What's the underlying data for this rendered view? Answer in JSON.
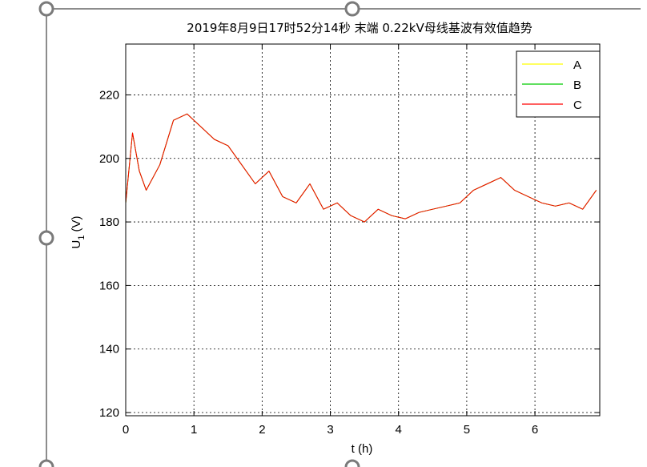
{
  "chart_data": {
    "type": "line",
    "title": "2019年8月9日17时52分14秒  末端 0.22kV母线基波有效值趋势",
    "xlabel": "t (h)",
    "ylabel": "U",
    "ylabel_sub": "1",
    "ylabel_unit": "(V)",
    "xlim": [
      0,
      6.95
    ],
    "ylim": [
      119,
      236
    ],
    "xticks": [
      0,
      1,
      2,
      3,
      4,
      5,
      6
    ],
    "yticks": [
      120,
      140,
      160,
      180,
      200,
      220
    ],
    "grid": true,
    "legend_position": "top-right",
    "series": [
      {
        "name": "A",
        "color": "#ffff00",
        "x": [
          0,
          0.1,
          0.2,
          0.3,
          0.5,
          0.7,
          0.9,
          1.1,
          1.3,
          1.5,
          1.7,
          1.9,
          2.1,
          2.3,
          2.5,
          2.7,
          2.9,
          3.1,
          3.3,
          3.5,
          3.7,
          3.9,
          4.1,
          4.3,
          4.5,
          4.7,
          4.9,
          5.1,
          5.3,
          5.5,
          5.7,
          5.9,
          6.1,
          6.3,
          6.5,
          6.7,
          6.9
        ],
        "values": [
          186,
          208,
          196,
          190,
          198,
          212,
          214,
          210,
          206,
          204,
          198,
          192,
          196,
          188,
          186,
          192,
          184,
          186,
          182,
          180,
          184,
          182,
          181,
          183,
          184,
          185,
          186,
          190,
          192,
          194,
          190,
          188,
          186,
          185,
          186,
          184,
          190
        ]
      },
      {
        "name": "B",
        "color": "#00cc00",
        "x": [
          0,
          0.1,
          0.2,
          0.3,
          0.5,
          0.7,
          0.9,
          1.1,
          1.3,
          1.5,
          1.7,
          1.9,
          2.1,
          2.3,
          2.5,
          2.7,
          2.9,
          3.1,
          3.3,
          3.5,
          3.7,
          3.9,
          4.1,
          4.3,
          4.5,
          4.7,
          4.9,
          5.1,
          5.3,
          5.5,
          5.7,
          5.9,
          6.1,
          6.3,
          6.5,
          6.7,
          6.9
        ],
        "values": [
          186,
          208,
          196,
          190,
          198,
          212,
          214,
          210,
          206,
          204,
          198,
          192,
          196,
          188,
          186,
          192,
          184,
          186,
          182,
          180,
          184,
          182,
          181,
          183,
          184,
          185,
          186,
          190,
          192,
          194,
          190,
          188,
          186,
          185,
          186,
          184,
          190
        ]
      },
      {
        "name": "C",
        "color": "#ff0000",
        "x": [
          0,
          0.1,
          0.2,
          0.3,
          0.5,
          0.7,
          0.9,
          1.1,
          1.3,
          1.5,
          1.7,
          1.9,
          2.1,
          2.3,
          2.5,
          2.7,
          2.9,
          3.1,
          3.3,
          3.5,
          3.7,
          3.9,
          4.1,
          4.3,
          4.5,
          4.7,
          4.9,
          5.1,
          5.3,
          5.5,
          5.7,
          5.9,
          6.1,
          6.3,
          6.5,
          6.7,
          6.9
        ],
        "values": [
          186,
          208,
          196,
          190,
          198,
          212,
          214,
          210,
          206,
          204,
          198,
          192,
          196,
          188,
          186,
          192,
          184,
          186,
          182,
          180,
          184,
          182,
          181,
          183,
          184,
          185,
          186,
          190,
          192,
          194,
          190,
          188,
          186,
          185,
          186,
          184,
          190
        ]
      }
    ]
  }
}
